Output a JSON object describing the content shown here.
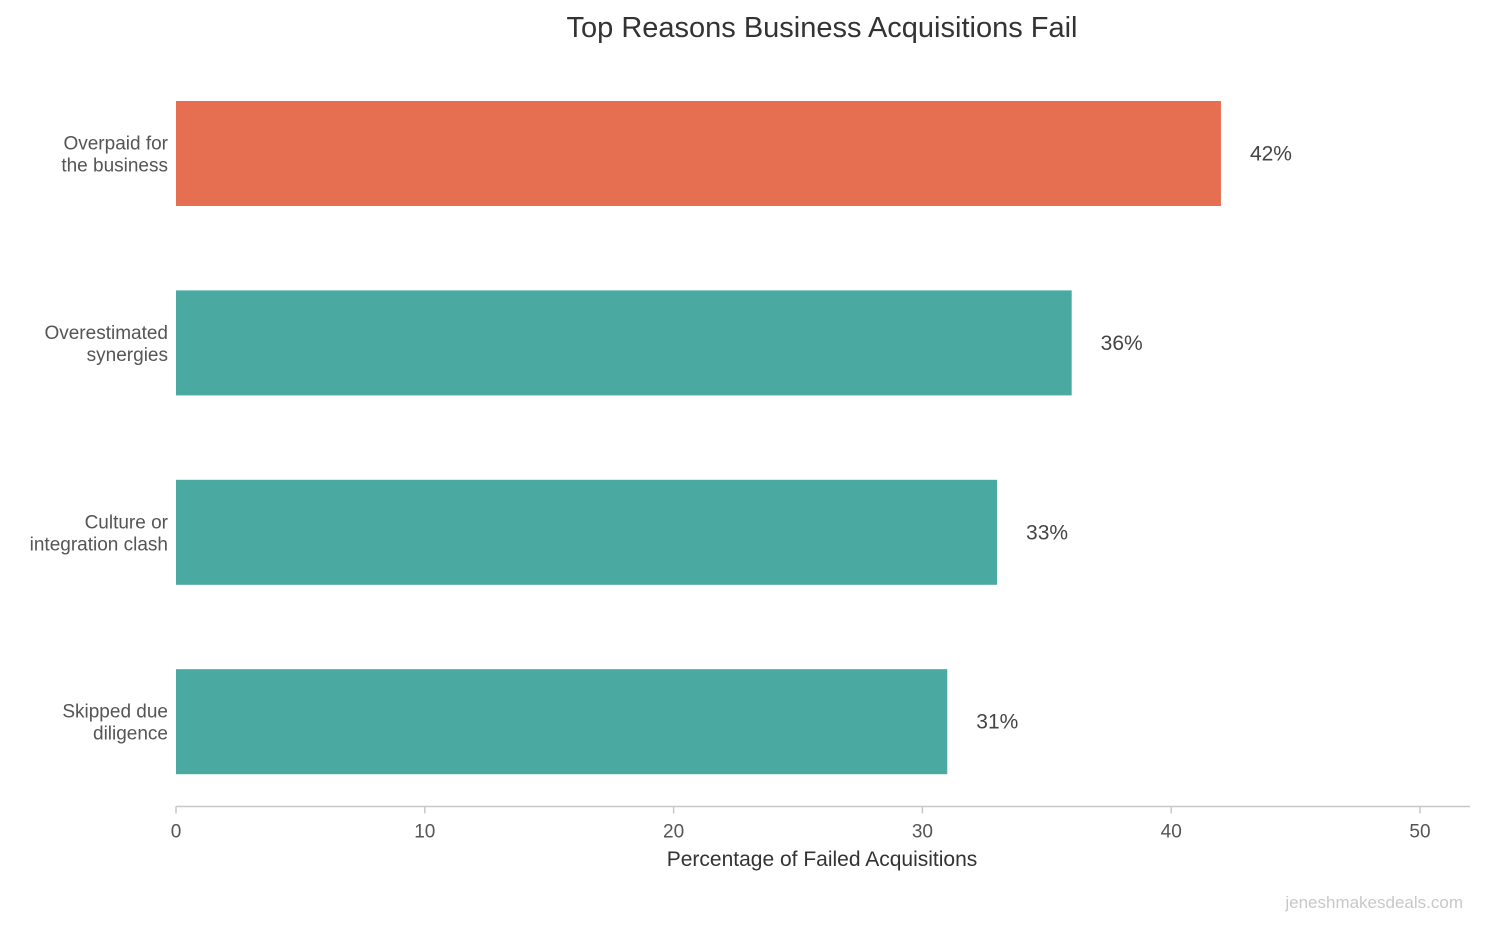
{
  "chart_data": {
    "type": "bar",
    "orientation": "horizontal",
    "title": "Top Reasons Business Acquisitions Fail",
    "xlabel": "Percentage of Failed Acquisitions",
    "ylabel": "",
    "categories": [
      [
        "Overpaid for",
        "the business"
      ],
      [
        "Overestimated",
        "synergies"
      ],
      [
        "Culture or",
        "integration clash"
      ],
      [
        "Skipped due",
        "diligence"
      ]
    ],
    "values": [
      42,
      36,
      33,
      31
    ],
    "value_labels": [
      "42%",
      "36%",
      "33%",
      "31%"
    ],
    "colors": [
      "#E76F51",
      "#4AA9A0",
      "#4AA9A0",
      "#4AA9A0"
    ],
    "xlim": [
      0,
      52
    ],
    "xticks": [
      0,
      10,
      20,
      30,
      40,
      50
    ],
    "xtick_labels": [
      "0",
      "10",
      "20",
      "30",
      "40",
      "50"
    ],
    "grid": false,
    "legend": "none"
  },
  "watermark": "jeneshmakesdeals.com"
}
